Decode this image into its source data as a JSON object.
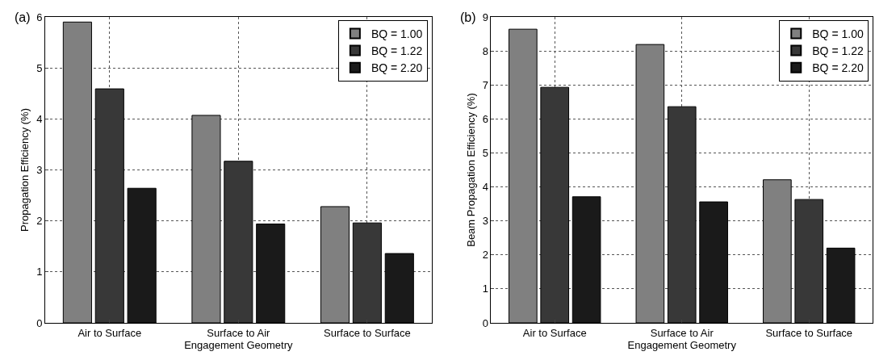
{
  "chart_data": [
    {
      "type": "bar",
      "title": "(a)",
      "xlabel": "Engagement Geometry",
      "ylabel": "Propagation Efficiency (%)",
      "categories": [
        "Air to Surface",
        "Surface to Air",
        "Surface to Surface"
      ],
      "ylim": [
        0,
        6
      ],
      "yticks": [
        0,
        1,
        2,
        3,
        4,
        5,
        6
      ],
      "grid": true,
      "legend": "top right",
      "series": [
        {
          "name": "BQ = 1.00",
          "color": "#808080",
          "values": [
            5.9,
            4.07,
            2.28
          ]
        },
        {
          "name": "BQ = 1.22",
          "color": "#383838",
          "values": [
            4.59,
            3.17,
            1.96
          ]
        },
        {
          "name": "BQ = 2.20",
          "color": "#1a1a1a",
          "values": [
            2.64,
            1.94,
            1.36
          ]
        }
      ]
    },
    {
      "type": "bar",
      "title": "(b)",
      "xlabel": "Engagement Geometry",
      "ylabel": "Beam Propagation Efficiency (%)",
      "categories": [
        "Air to Surface",
        "Surface to Air",
        "Surface to Surface"
      ],
      "ylim": [
        0,
        9
      ],
      "yticks": [
        0,
        1,
        2,
        3,
        4,
        5,
        6,
        7,
        8,
        9
      ],
      "grid": true,
      "legend": "top right",
      "series": [
        {
          "name": "BQ = 1.00",
          "color": "#808080",
          "values": [
            8.64,
            8.19,
            4.21
          ]
        },
        {
          "name": "BQ = 1.22",
          "color": "#383838",
          "values": [
            6.93,
            6.36,
            3.63
          ]
        },
        {
          "name": "BQ = 2.20",
          "color": "#1a1a1a",
          "values": [
            3.71,
            3.56,
            2.2
          ]
        }
      ]
    }
  ]
}
